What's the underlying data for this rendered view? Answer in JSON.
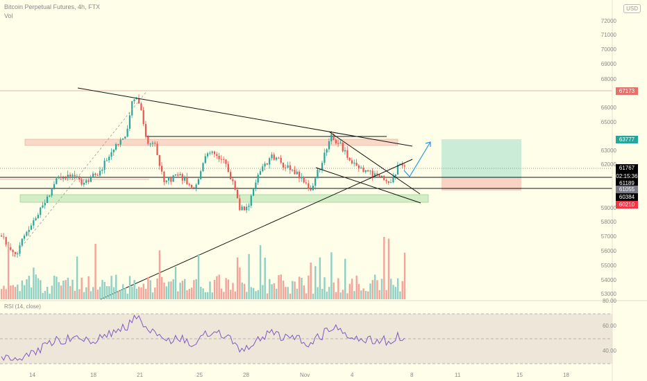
{
  "header": {
    "title": "Bitcoin Perpetual Futures, 4h, FTX",
    "vol_label": "Vol",
    "rsi_label": "RSI (14, close)",
    "currency": "USD"
  },
  "price_axis": [
    "72000",
    "71000",
    "70000",
    "69000",
    "68000",
    "66000",
    "65000",
    "63000",
    "62000",
    "59000",
    "58000",
    "57000",
    "56000",
    "55000",
    "54000",
    "53000"
  ],
  "rsi_axis": [
    "80.00",
    "60.00",
    "40.00"
  ],
  "time_axis": [
    "14",
    "18",
    "21",
    "25",
    "28",
    "Nov",
    "4",
    "8",
    "11",
    "15",
    "18"
  ],
  "price_tags": [
    {
      "value": "67173",
      "bg": "#e2726b",
      "fg": "#ffffff"
    },
    {
      "value": "63777",
      "bg": "#26a69a",
      "fg": "#ffffff"
    },
    {
      "value": "61767",
      "sub": "02:15:36",
      "bg": "#000000",
      "fg": "#ffffff"
    },
    {
      "value": "61189",
      "bg": "#000000",
      "fg": "#ffffff"
    },
    {
      "value": "61055",
      "bg": "#787b86",
      "fg": "#ffffff"
    },
    {
      "value": "60384",
      "bg": "#000000",
      "fg": "#ffffff"
    },
    {
      "value": "60210",
      "bg": "#f23645",
      "fg": "#ffffff"
    }
  ],
  "colors": {
    "up": "#26a69a",
    "down": "#ef5350",
    "vol_up": "#8fd0c4",
    "vol_down": "#f4a39b",
    "rsi": "#7e57c2",
    "background": "#fffee8"
  }
}
